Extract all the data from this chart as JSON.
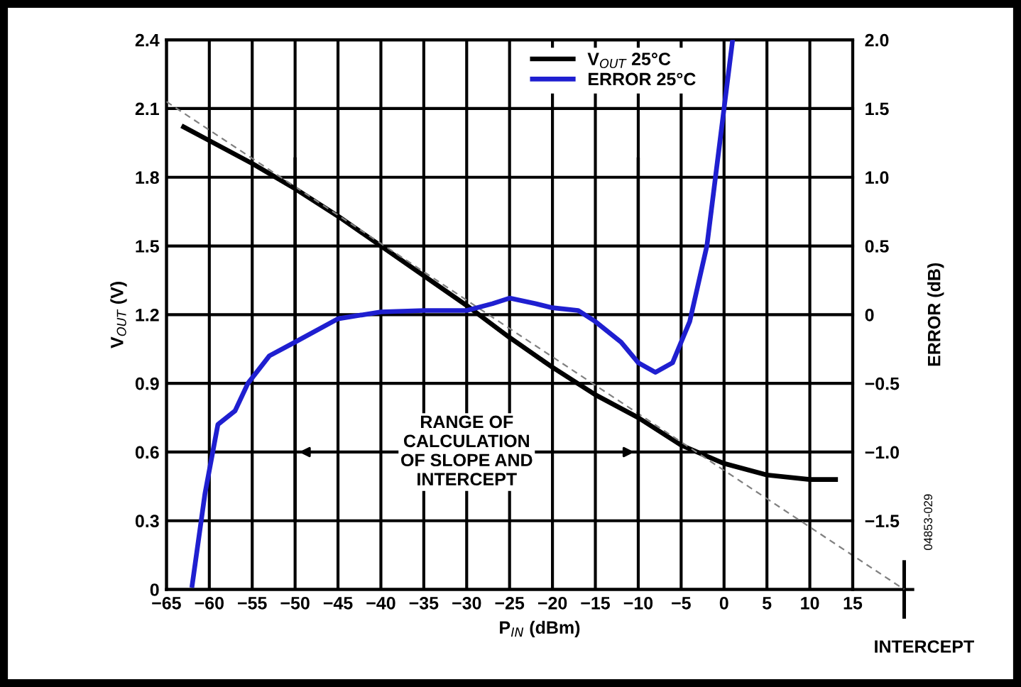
{
  "chart_data": {
    "type": "line",
    "xlabel": "P$_{IN}$ (dBm)",
    "ylabel": "V$_{OUT}$ (V)",
    "y2label": "ERROR (dB)",
    "xlim": [
      -65,
      22
    ],
    "xticks": [
      {
        "value": -65,
        "label": "−65"
      },
      {
        "value": -60,
        "label": "−60"
      },
      {
        "value": -55,
        "label": "−55"
      },
      {
        "value": -50,
        "label": "−50"
      },
      {
        "value": -45,
        "label": "−45"
      },
      {
        "value": -40,
        "label": "−40"
      },
      {
        "value": -35,
        "label": "−35"
      },
      {
        "value": -30,
        "label": "−30"
      },
      {
        "value": -25,
        "label": "−25"
      },
      {
        "value": -20,
        "label": "−20"
      },
      {
        "value": -15,
        "label": "−15"
      },
      {
        "value": -10,
        "label": "−10"
      },
      {
        "value": -5,
        "label": "−5"
      },
      0,
      5,
      10,
      15
    ],
    "ylim": [
      0,
      2.4
    ],
    "yticks": [
      0,
      0.3,
      0.6,
      0.9,
      1.2,
      1.5,
      1.8,
      2.1,
      2.4
    ],
    "y2lim": [
      -2.0,
      2.0
    ],
    "y2ticks": [
      {
        "value": -2.0,
        "label": null
      },
      {
        "value": -1.5,
        "label": "−1.5"
      },
      {
        "value": -1.0,
        "label": "−1.0"
      },
      {
        "value": -0.5,
        "label": "−0.5"
      },
      0,
      {
        "value": 0.5,
        "label": "0.5"
      },
      {
        "value": 1.0,
        "label": "1.0"
      },
      {
        "value": 1.5,
        "label": "1.5"
      },
      {
        "value": 2.0,
        "label": "2.0"
      }
    ],
    "grid": true,
    "legend": "top",
    "line_style": "solid",
    "series": [
      {
        "name": "V$_{OUT}$ 25°C",
        "color": "#000000",
        "x": [
          -63,
          -60,
          -55,
          -50,
          -45,
          -40,
          -35,
          -30,
          -25,
          -20,
          -15,
          -10,
          -5,
          0,
          5,
          10,
          13
        ],
        "values": [
          2.02,
          1.96,
          1.86,
          1.75,
          1.63,
          1.5,
          1.37,
          1.24,
          1.1,
          0.97,
          0.85,
          0.75,
          0.63,
          0.55,
          0.5,
          0.48,
          0.48
        ]
      },
      {
        "name": "ERROR 25°C",
        "color": "#1f1fd0",
        "axis": "y2",
        "x": [
          -62,
          -60.5,
          -59,
          -57,
          -55.5,
          -53,
          -50,
          -45,
          -40,
          -35,
          -30,
          -27,
          -25,
          -22,
          -20,
          -17,
          -15,
          -12,
          -10,
          -8,
          -6,
          -4,
          -2,
          -1,
          0,
          1
        ],
        "values": [
          -1.97,
          -1.3,
          -0.8,
          -0.7,
          -0.5,
          -0.3,
          -0.2,
          -0.03,
          0.02,
          0.03,
          0.03,
          0.08,
          0.12,
          0.08,
          0.05,
          0.03,
          -0.05,
          -0.2,
          -0.35,
          -0.42,
          -0.35,
          -0.05,
          0.5,
          1.0,
          1.5,
          2.0
        ]
      },
      {
        "type": "line",
        "line_style": "dashed",
        "color": "#808080",
        "x": [
          -65,
          21
        ],
        "values": [
          2.13,
          0
        ]
      }
    ],
    "ref_lines": [
      {
        "axis": "x",
        "value": -50
      },
      {
        "axis": "x",
        "value": -10
      }
    ],
    "annotations": [
      "RANGE OF\nCALCULATION\nOF SLOPE AND\nINTERCEPT",
      "INTERCEPT",
      "04853-029"
    ]
  }
}
